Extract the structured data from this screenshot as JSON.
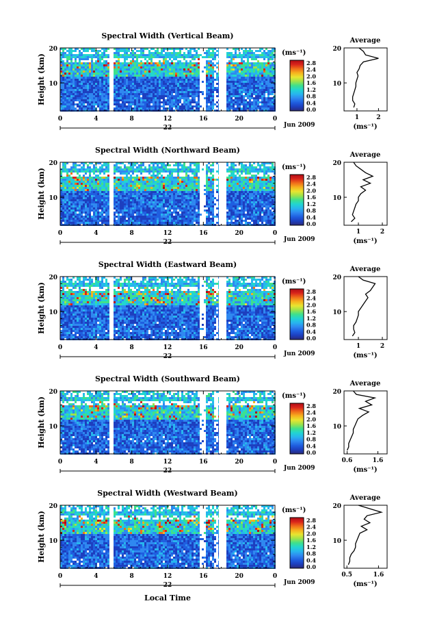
{
  "figure": {
    "xlabel_shared": "Local Time",
    "colorbar_unit": "(ms⁻¹)",
    "colorbar_ticks": [
      "2.8",
      "2.4",
      "2.0",
      "1.6",
      "1.2",
      "0.8",
      "0.4",
      "0.0"
    ],
    "colormap": [
      "#2b2a7a",
      "#1d3fbf",
      "#1f5fe0",
      "#2f88f0",
      "#27b6ee",
      "#22d5d0",
      "#3fe08c",
      "#9ee34a",
      "#e8e530",
      "#f6b21e",
      "#f06d1a",
      "#d9241b",
      "#b00c16"
    ]
  },
  "chart_data": [
    {
      "type": "heatmap",
      "title": "Spectral Width (Vertical Beam)",
      "ylabel": "Height (km)",
      "y_ticks": [
        "20",
        "10"
      ],
      "x_ticks": [
        "0",
        "4",
        "8",
        "12",
        "16",
        "20",
        "0"
      ],
      "date_tick": "22",
      "date_label": "Jun 2009",
      "xlim": [
        0,
        24
      ],
      "ylim": [
        2,
        20
      ],
      "colorbar": {
        "min": 0.0,
        "max": 2.8
      },
      "profile": {
        "title": "Average",
        "y_ticks": [
          "20",
          "10"
        ],
        "x_ticks": [
          "1",
          "2"
        ],
        "xlabel": "(ms⁻¹)",
        "xlim": [
          0.4,
          2.4
        ],
        "heights": [
          3,
          4,
          5,
          6,
          7,
          8,
          9,
          10,
          11,
          12,
          13,
          14,
          15,
          16,
          17,
          18,
          19,
          20
        ],
        "values": [
          0.85,
          0.9,
          0.8,
          0.8,
          0.85,
          0.9,
          0.95,
          0.95,
          1.0,
          1.05,
          1.0,
          1.1,
          1.15,
          1.3,
          2.0,
          1.4,
          1.3,
          1.1
        ]
      }
    },
    {
      "type": "heatmap",
      "title": "Spectral Width (Northward Beam)",
      "ylabel": "Height (km)",
      "y_ticks": [
        "20",
        "10"
      ],
      "x_ticks": [
        "0",
        "4",
        "8",
        "12",
        "16",
        "20",
        "0"
      ],
      "date_tick": "22",
      "date_label": "Jun 2009",
      "xlim": [
        0,
        24
      ],
      "ylim": [
        2,
        20
      ],
      "colorbar": {
        "min": 0.0,
        "max": 2.8
      },
      "profile": {
        "title": "Average",
        "y_ticks": [
          "20",
          "10"
        ],
        "x_ticks": [
          "1",
          "2"
        ],
        "xlabel": "(ms⁻¹)",
        "xlim": [
          0.4,
          2.2
        ],
        "heights": [
          3,
          4,
          5,
          6,
          7,
          8,
          9,
          10,
          11,
          12,
          13,
          14,
          15,
          16,
          17,
          18,
          19,
          20
        ],
        "values": [
          0.7,
          0.85,
          0.75,
          0.8,
          0.85,
          0.9,
          1.0,
          1.0,
          1.1,
          1.3,
          1.1,
          1.5,
          1.2,
          1.6,
          1.3,
          1.1,
          0.9,
          0.8
        ]
      }
    },
    {
      "type": "heatmap",
      "title": "Spectral Width (Eastward Beam)",
      "ylabel": "Height (km)",
      "y_ticks": [
        "20",
        "10"
      ],
      "x_ticks": [
        "0",
        "4",
        "8",
        "12",
        "16",
        "20",
        "0"
      ],
      "date_tick": "22",
      "date_label": "Jun 2009",
      "xlim": [
        0,
        24
      ],
      "ylim": [
        2,
        20
      ],
      "colorbar": {
        "min": 0.0,
        "max": 2.8
      },
      "profile": {
        "title": "Average",
        "y_ticks": [
          "20",
          "10"
        ],
        "x_ticks": [
          "1",
          "2"
        ],
        "xlabel": "(ms⁻¹)",
        "xlim": [
          0.4,
          2.2
        ],
        "heights": [
          3,
          4,
          5,
          6,
          7,
          8,
          9,
          10,
          11,
          12,
          13,
          14,
          15,
          16,
          17,
          18,
          19,
          20
        ],
        "values": [
          0.75,
          0.85,
          0.8,
          0.8,
          0.9,
          0.95,
          1.0,
          1.0,
          1.1,
          1.2,
          1.3,
          1.4,
          1.3,
          1.5,
          1.6,
          1.7,
          1.2,
          1.0
        ]
      }
    },
    {
      "type": "heatmap",
      "title": "Spectral Width (Southward Beam)",
      "ylabel": "Height (km)",
      "y_ticks": [
        "20",
        "10"
      ],
      "x_ticks": [
        "0",
        "4",
        "8",
        "12",
        "16",
        "20",
        "0"
      ],
      "date_tick": "22",
      "date_label": "Jun 2009",
      "xlim": [
        0,
        24
      ],
      "ylim": [
        2,
        20
      ],
      "colorbar": {
        "min": 0.0,
        "max": 2.8
      },
      "profile": {
        "title": "Average",
        "y_ticks": [
          "20",
          "10"
        ],
        "x_ticks": [
          "0.6",
          "1.6"
        ],
        "xlabel": "(ms⁻¹)",
        "xlim": [
          0.5,
          1.9
        ],
        "heights": [
          3,
          4,
          5,
          6,
          7,
          8,
          9,
          10,
          11,
          12,
          13,
          14,
          15,
          16,
          17,
          18,
          19,
          20
        ],
        "values": [
          0.6,
          0.65,
          0.65,
          0.7,
          0.75,
          0.8,
          0.8,
          0.85,
          0.9,
          0.95,
          1.1,
          1.3,
          1.0,
          1.4,
          1.2,
          1.5,
          0.9,
          0.8
        ]
      }
    },
    {
      "type": "heatmap",
      "title": "Spectral Width (Westward Beam)",
      "ylabel": "Height (km)",
      "y_ticks": [
        "20",
        "10"
      ],
      "x_ticks": [
        "0",
        "4",
        "8",
        "12",
        "16",
        "20",
        "0"
      ],
      "date_tick": "22",
      "date_label": "Jun 2009",
      "xlim": [
        0,
        24
      ],
      "ylim": [
        2,
        20
      ],
      "colorbar": {
        "min": 0.0,
        "max": 2.8
      },
      "profile": {
        "title": "Average",
        "y_ticks": [
          "20",
          "10"
        ],
        "x_ticks": [
          "0.5",
          "1.6"
        ],
        "xlabel": "(ms⁻¹)",
        "xlim": [
          0.4,
          1.9
        ],
        "heights": [
          3,
          4,
          5,
          6,
          7,
          8,
          9,
          10,
          11,
          12,
          13,
          14,
          15,
          16,
          17,
          18,
          19,
          20
        ],
        "values": [
          0.55,
          0.6,
          0.6,
          0.65,
          0.75,
          0.8,
          0.8,
          0.85,
          0.9,
          0.95,
          1.2,
          1.0,
          1.3,
          1.1,
          1.2,
          1.7,
          1.3,
          0.9
        ]
      }
    }
  ]
}
